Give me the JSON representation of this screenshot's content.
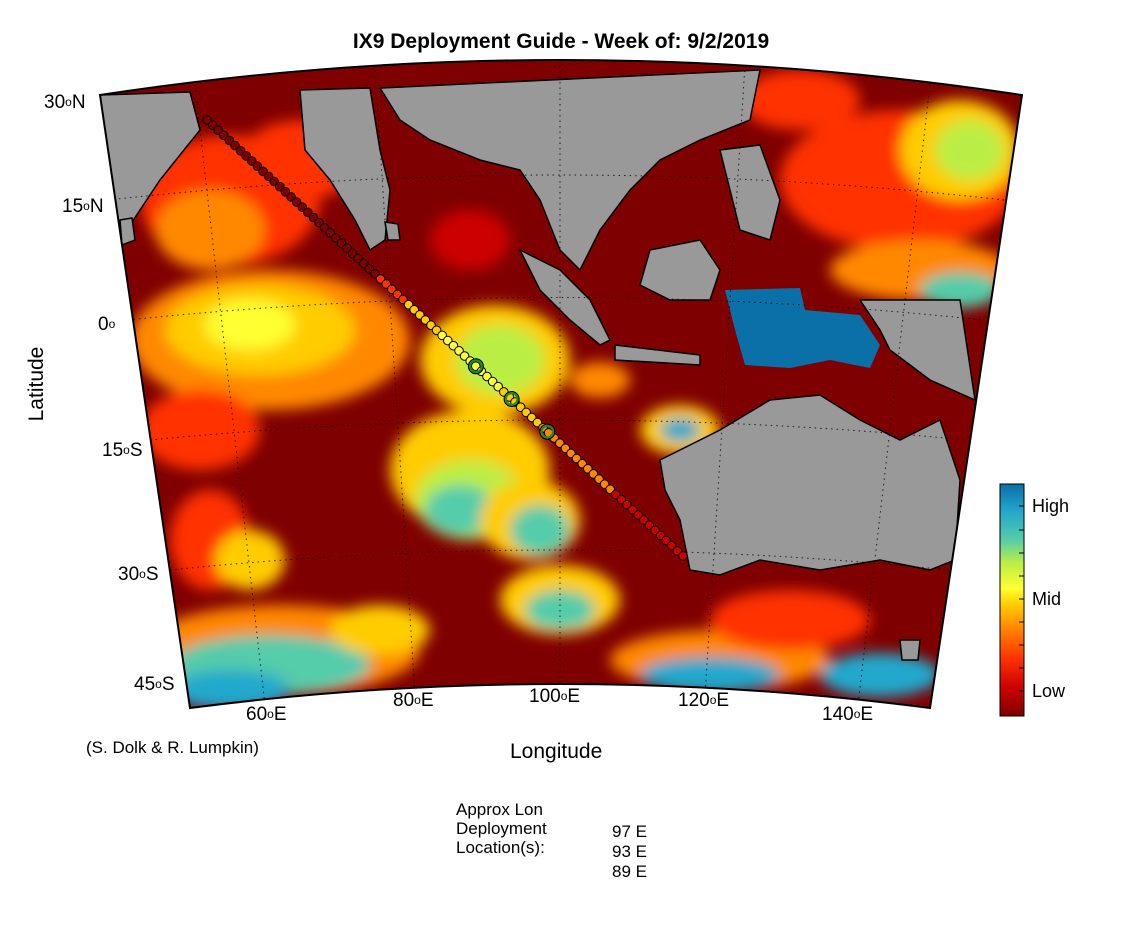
{
  "title": "IX9 Deployment Guide - Week of: 9/2/2019",
  "axes": {
    "xlabel": "Longitude",
    "ylabel": "Latitude",
    "lat_ticks": [
      {
        "value": 30,
        "num": "30",
        "hemi": "N"
      },
      {
        "value": 15,
        "num": "15",
        "hemi": "N"
      },
      {
        "value": 0,
        "num": "0",
        "hemi": ""
      },
      {
        "value": -15,
        "num": "15",
        "hemi": "S"
      },
      {
        "value": -30,
        "num": "30",
        "hemi": "S"
      },
      {
        "value": -45,
        "num": "45",
        "hemi": "S"
      }
    ],
    "lon_ticks": [
      {
        "value": 60,
        "num": "60",
        "hemi": "E"
      },
      {
        "value": 80,
        "num": "80",
        "hemi": "E"
      },
      {
        "value": 100,
        "num": "100",
        "hemi": "E"
      },
      {
        "value": 120,
        "num": "120",
        "hemi": "E"
      },
      {
        "value": 140,
        "num": "140",
        "hemi": "E"
      }
    ],
    "lon_range": [
      50,
      150
    ],
    "lat_range": [
      -45,
      30
    ]
  },
  "colorbar": {
    "labels": {
      "high": "High",
      "mid": "Mid",
      "low": "Low"
    },
    "colors": [
      "#7f0000",
      "#cc0000",
      "#ff3300",
      "#ff8800",
      "#ffcc00",
      "#ffff33",
      "#bbee44",
      "#55ccaa",
      "#22a8cc",
      "#0b6fa8"
    ]
  },
  "credit": "(S. Dolk & R. Lumpkin)",
  "deployment": {
    "header_lines": [
      "Approx Lon",
      "Deployment",
      "Location(s):"
    ],
    "locations": [
      "97 E",
      "93 E",
      "89 E"
    ]
  },
  "chart_data": {
    "type": "heatmap",
    "title": "IX9 Deployment Guide - Week of: 9/2/2019",
    "xlabel": "Longitude",
    "ylabel": "Latitude",
    "xlim": [
      50,
      150
    ],
    "ylim": [
      -45,
      30
    ],
    "colorbar_labels": [
      "Low",
      "Mid",
      "High"
    ],
    "transect": {
      "name": "IX9",
      "start": {
        "lon": 63,
        "lat": 26
      },
      "end": {
        "lon": 116,
        "lat": -31
      }
    },
    "deployment_lons": [
      97,
      93,
      89
    ]
  },
  "colors": {
    "land": "#999999",
    "ocean_base": "#7f0000",
    "track_marker_edge": "#000000",
    "deployment_marker": "#1f8a2e"
  }
}
